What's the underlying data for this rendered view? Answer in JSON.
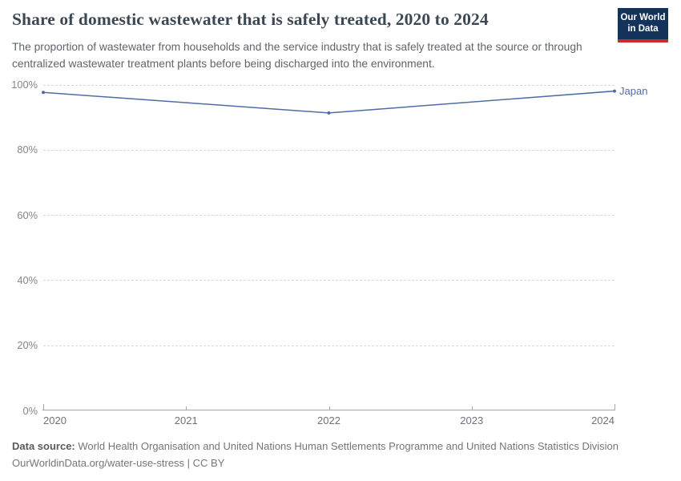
{
  "header": {
    "title": "Share of domestic wastewater that is safely treated, 2020 to 2024",
    "subtitle": "The proportion of wastewater from households and the service industry that is safely treated at the source or through centralized wastewater treatment plants before being discharged into the environment."
  },
  "logo": {
    "line1": "Our World",
    "line2": "in Data",
    "background_color": "#14335b",
    "stripe_color": "#cf2a29"
  },
  "chart_data": {
    "type": "line",
    "title": "Share of domestic wastewater that is safely treated, 2020 to 2024",
    "x": [
      2020,
      2022,
      2024
    ],
    "series": [
      {
        "name": "Japan",
        "values": [
          97.6,
          91.3,
          98
        ]
      }
    ],
    "xlim": [
      2020,
      2024
    ],
    "ylim": [
      0,
      100
    ],
    "xticks": [
      "2020",
      "2021",
      "2022",
      "2023",
      "2024"
    ],
    "yticks": [
      0,
      20,
      40,
      60,
      80,
      100
    ],
    "ytick_labels": [
      "0%",
      "20%",
      "40%",
      "60%",
      "80%",
      "100%"
    ],
    "xlabel": "",
    "ylabel": "",
    "grid": "horizontal dashed",
    "legend_position": "end-of-line label",
    "line_color": "#4d6da5"
  },
  "footer": {
    "source_label": "Data source:",
    "source_text": "World Health Organisation and United Nations Human Settlements Programme and United Nations Statistics Division",
    "citation": "OurWorldinData.org/water-use-stress | CC BY"
  }
}
